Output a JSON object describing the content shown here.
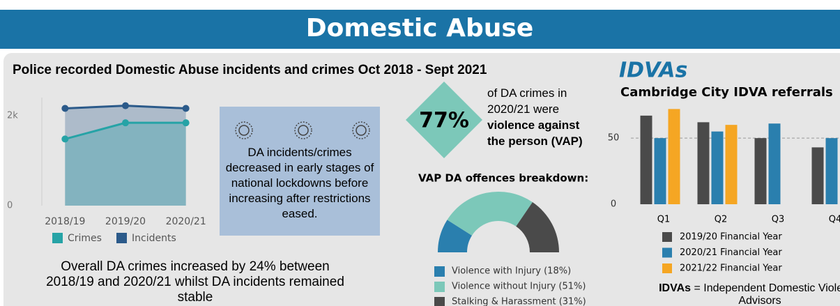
{
  "header": {
    "title": "Domestic Abuse"
  },
  "police": {
    "title": "Police recorded Domestic Abuse incidents and crimes Oct 2018 - Sept 2021",
    "note": "DA incidents/crimes decreased in early stages of national lockdowns before increasing after restrictions eased.",
    "summary": "Overall DA crimes increased by 24% between 2018/19 and 2020/21 whilst DA incidents remained stable"
  },
  "vap": {
    "stat": "77%",
    "text": "of DA crimes in 2020/21 were",
    "emphasis": "violence against the person (VAP)"
  },
  "idva": {
    "heading": "IDVAs",
    "footnote_term": "IDVAs",
    "footnote_text": "= Independent Domestic Violence Advisors"
  },
  "chart_data": [
    {
      "type": "line",
      "area": true,
      "categories": [
        "2018/19",
        "2019/20",
        "2020/21"
      ],
      "series": [
        {
          "name": "Crimes",
          "color": "#26a3a6",
          "values": [
            1480,
            1840,
            1840
          ]
        },
        {
          "name": "Incidents",
          "color": "#2b5a8a",
          "values": [
            2160,
            2220,
            2160
          ]
        }
      ],
      "ylim": [
        0,
        2400
      ],
      "yticks": [
        0,
        {
          "value": 2000,
          "label": "2k"
        }
      ]
    },
    {
      "type": "pie",
      "donut": true,
      "half": true,
      "title": "VAP DA offences breakdown:",
      "categories": [
        "Violence with Injury (18%)",
        "Violence without Injury (51%)",
        "Stalking & Harassment (31%)"
      ],
      "values": [
        18,
        51,
        31
      ],
      "colors": [
        "#2a7fae",
        "#7cc8b9",
        "#4a4a4a"
      ]
    },
    {
      "type": "bar",
      "title": "Cambridge City IDVA referrals",
      "categories": [
        "Q1",
        "Q2",
        "Q3",
        "Q4"
      ],
      "series": [
        {
          "name": "2019/20 Financial Year",
          "color": "#4a4a4a",
          "values": [
            67,
            62,
            50,
            43
          ]
        },
        {
          "name": "2020/21 Financial Year",
          "color": "#2a7fae",
          "values": [
            50,
            55,
            61,
            50
          ]
        },
        {
          "name": "2021/22 Financial Year",
          "color": "#f5a623",
          "values": [
            72,
            60,
            null,
            null
          ]
        }
      ],
      "ylim": [
        0,
        78
      ],
      "yticks": [
        0,
        50
      ],
      "grid": "dashed"
    }
  ]
}
